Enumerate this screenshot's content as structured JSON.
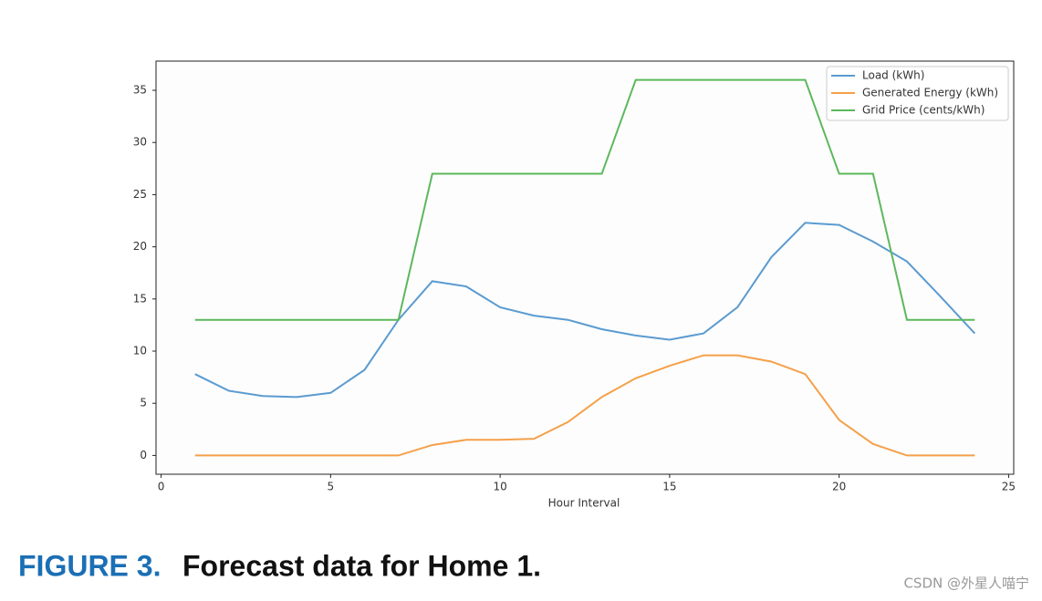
{
  "chart_data": {
    "type": "line",
    "x": [
      1,
      2,
      3,
      4,
      5,
      6,
      7,
      8,
      9,
      10,
      11,
      12,
      13,
      14,
      15,
      16,
      17,
      18,
      19,
      20,
      21,
      22,
      23,
      24
    ],
    "series": [
      {
        "name": "Load (kWh)",
        "color": "#5b9bd0",
        "values": [
          7.8,
          6.2,
          5.7,
          5.6,
          6.0,
          8.2,
          13.0,
          16.7,
          16.2,
          14.2,
          13.4,
          13.0,
          12.1,
          11.5,
          11.1,
          11.7,
          14.2,
          19.0,
          22.3,
          22.1,
          20.5,
          18.6,
          15.2,
          11.7
        ]
      },
      {
        "name": "Generated Energy (kWh)",
        "color": "#f5a04a",
        "values": [
          0,
          0,
          0,
          0,
          0,
          0,
          0,
          1.0,
          1.5,
          1.5,
          1.6,
          3.2,
          5.6,
          7.4,
          8.6,
          9.6,
          9.6,
          9.0,
          7.8,
          3.4,
          1.1,
          0,
          0,
          0
        ]
      },
      {
        "name": "Grid Price (cents/kWh)",
        "color": "#5cb85c",
        "values": [
          13,
          13,
          13,
          13,
          13,
          13,
          13,
          27,
          27,
          27,
          27,
          27,
          27,
          36,
          36,
          36,
          36,
          36,
          36,
          27,
          27,
          13,
          13,
          13
        ]
      }
    ],
    "xlabel": "Hour Interval",
    "xlim": [
      -0.15,
      25.15
    ],
    "xticks": [
      0,
      5,
      10,
      15,
      20,
      25
    ],
    "ylim": [
      -1.8,
      37.8
    ],
    "yticks": [
      0,
      5,
      10,
      15,
      20,
      25,
      30,
      35
    ],
    "legend": "upper right"
  },
  "caption": {
    "label": "FIGURE 3.",
    "text": "Forecast data for Home 1."
  },
  "watermark": "CSDN @外星人喵宁"
}
